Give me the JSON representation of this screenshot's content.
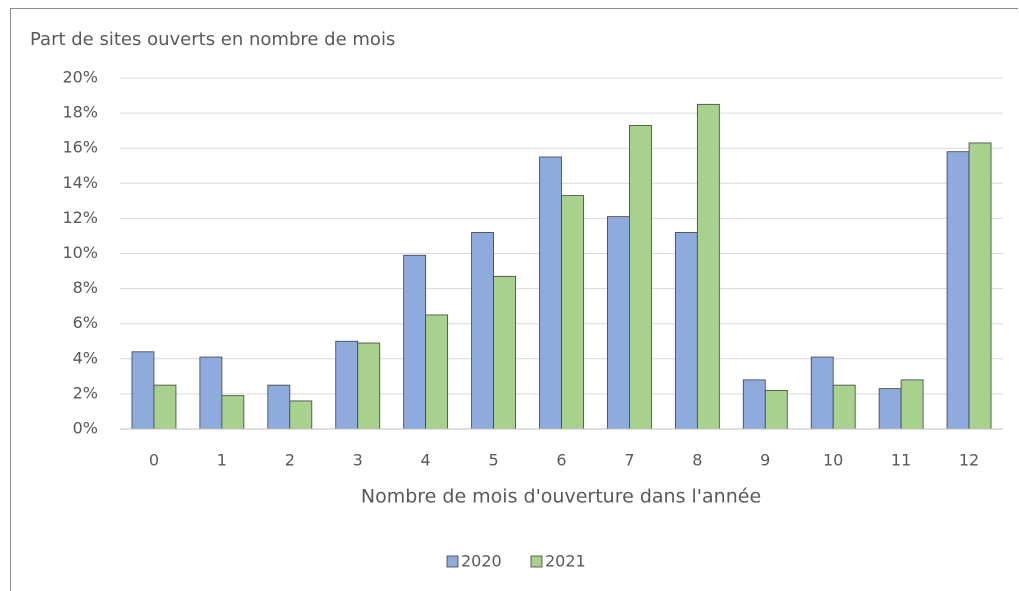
{
  "chart_data": {
    "type": "bar",
    "ylabel": "Part de sites ouverts en nombre de mois",
    "xlabel": "Nombre de mois d'ouverture dans l'année",
    "categories": [
      "0",
      "1",
      "2",
      "3",
      "4",
      "5",
      "6",
      "7",
      "8",
      "9",
      "10",
      "11",
      "12"
    ],
    "series": [
      {
        "name": "2020",
        "color": "#8faadc",
        "values": [
          4.4,
          4.1,
          2.5,
          5.0,
          9.9,
          11.2,
          15.5,
          12.1,
          11.2,
          2.8,
          4.1,
          2.3,
          15.8
        ]
      },
      {
        "name": "2021",
        "color": "#a9d18e",
        "values": [
          2.5,
          1.9,
          1.6,
          4.9,
          6.5,
          8.7,
          13.3,
          17.3,
          18.5,
          2.2,
          2.5,
          2.8,
          16.3
        ]
      }
    ],
    "ylim": [
      0,
      20
    ],
    "yticks": [
      {
        "value": 0,
        "label": "0%"
      },
      {
        "value": 2,
        "label": "2%"
      },
      {
        "value": 4,
        "label": "4%"
      },
      {
        "value": 6,
        "label": "6%"
      },
      {
        "value": 8,
        "label": "8%"
      },
      {
        "value": 10,
        "label": "10%"
      },
      {
        "value": 12,
        "label": "12%"
      },
      {
        "value": 14,
        "label": "14%"
      },
      {
        "value": 16,
        "label": "16%"
      },
      {
        "value": 18,
        "label": "18%"
      },
      {
        "value": 20,
        "label": "20%"
      }
    ],
    "grid": true,
    "legend": "bottom"
  }
}
